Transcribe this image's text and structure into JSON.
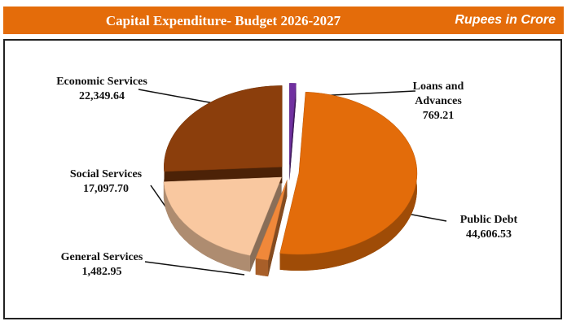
{
  "chart_data": {
    "type": "pie",
    "title": "Capital Expenditure- Budget 2026-2027",
    "subtitle": "Rupees in Crore",
    "categories": [
      "Loans and Advances",
      "Public Debt",
      "General Services",
      "Social Services",
      "Economic Services"
    ],
    "values": [
      769.21,
      44606.53,
      1482.95,
      17097.7,
      22349.64
    ],
    "value_labels": [
      "769.21",
      "44,606.53",
      "1,482.95",
      "17,097.70",
      "22,349.64"
    ],
    "colors": [
      "#7030a0",
      "#e36c0a",
      "#f0883a",
      "#f9c8a0",
      "#8b3e0c"
    ]
  }
}
